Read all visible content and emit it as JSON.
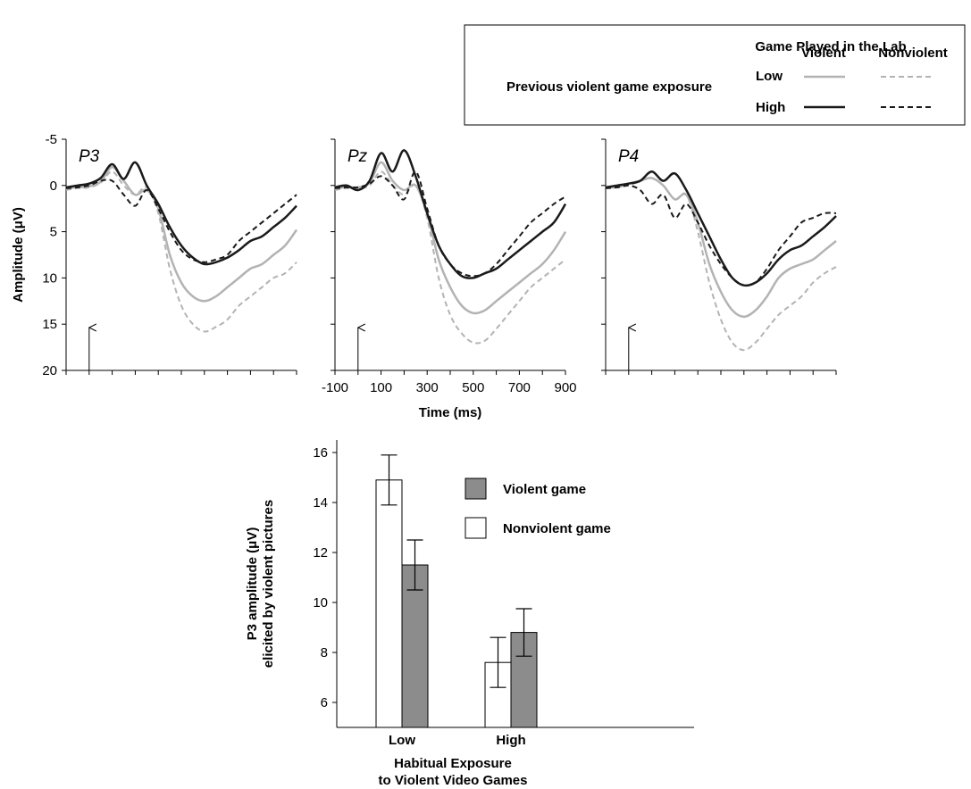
{
  "legend": {
    "title": "Game Played in the Lab",
    "row_label": "Previous violent game exposure",
    "col_violent": "Violent",
    "col_nonviolent": "Nonviolent",
    "level_low": "Low",
    "level_high": "High"
  },
  "colors": {
    "low_exposure": "#b3b3b3",
    "high_exposure": "#1a1a1a",
    "violent_bar": "#8c8c8c",
    "nonviolent_bar": "#ffffff"
  },
  "chart_data": [
    {
      "type": "line",
      "title": "P3",
      "ylabel": "Amplitude (μV)",
      "xlim": [
        -100,
        900
      ],
      "ylim": [
        -5,
        20
      ],
      "y_inverted": true,
      "yticks": [
        "-5",
        "0",
        "5",
        "10",
        "15",
        "20"
      ],
      "stimulus_onset_ms": 0,
      "x": [
        -100,
        -50,
        0,
        50,
        100,
        150,
        200,
        250,
        300,
        350,
        400,
        450,
        500,
        550,
        600,
        650,
        700,
        750,
        800,
        850,
        900
      ],
      "series": [
        {
          "name": "Low - Violent",
          "exposure": "Low",
          "game": "Violent",
          "values": [
            0.3,
            0.2,
            0.1,
            -0.4,
            -2.0,
            -0.5,
            1.0,
            0.5,
            2.5,
            7.5,
            10.5,
            12.0,
            12.5,
            12.0,
            11.0,
            10.0,
            9.0,
            8.5,
            7.5,
            6.5,
            4.8
          ]
        },
        {
          "name": "Low - Nonviolent",
          "exposure": "Low",
          "game": "Nonviolent",
          "values": [
            0.5,
            0.3,
            0.2,
            -0.3,
            -1.5,
            0.0,
            1.0,
            0.2,
            3.0,
            9.0,
            13.0,
            15.0,
            15.8,
            15.3,
            14.5,
            13.0,
            12.0,
            11.0,
            10.0,
            9.5,
            8.3
          ]
        },
        {
          "name": "High - Violent",
          "exposure": "High",
          "game": "Violent",
          "values": [
            0.2,
            0.0,
            -0.2,
            -0.8,
            -2.3,
            -0.7,
            -2.5,
            0.0,
            2.0,
            4.5,
            6.5,
            7.8,
            8.5,
            8.3,
            7.8,
            7.0,
            6.0,
            5.5,
            4.5,
            3.5,
            2.2
          ]
        },
        {
          "name": "High - Nonviolent",
          "exposure": "High",
          "game": "Nonviolent",
          "values": [
            0.3,
            0.2,
            0.0,
            -0.5,
            -0.5,
            1.0,
            2.2,
            0.5,
            2.5,
            5.0,
            7.0,
            8.0,
            8.3,
            8.0,
            7.5,
            6.0,
            5.0,
            4.0,
            3.0,
            2.0,
            1.0
          ]
        }
      ]
    },
    {
      "type": "line",
      "title": "Pz",
      "xlabel": "Time (ms)",
      "xlim": [
        -100,
        900
      ],
      "ylim": [
        -5,
        20
      ],
      "y_inverted": true,
      "xticks": [
        "-100",
        "100",
        "300",
        "500",
        "700",
        "900"
      ],
      "stimulus_onset_ms": 0,
      "x": [
        -100,
        -50,
        0,
        50,
        100,
        150,
        200,
        250,
        300,
        350,
        400,
        450,
        500,
        550,
        600,
        650,
        700,
        750,
        800,
        850,
        900
      ],
      "series": [
        {
          "name": "Low - Violent",
          "exposure": "Low",
          "game": "Violent",
          "values": [
            0.3,
            0.2,
            0.2,
            -0.3,
            -2.5,
            -0.5,
            0.5,
            0.0,
            3.0,
            8.0,
            11.0,
            13.0,
            13.8,
            13.5,
            12.5,
            11.5,
            10.5,
            9.5,
            8.5,
            7.0,
            5.0
          ]
        },
        {
          "name": "Low - Nonviolent",
          "exposure": "Low",
          "game": "Nonviolent",
          "values": [
            0.5,
            0.3,
            0.3,
            0.0,
            -1.5,
            0.0,
            1.0,
            0.0,
            3.5,
            10.0,
            14.0,
            16.0,
            17.0,
            16.8,
            15.5,
            14.0,
            12.5,
            11.0,
            10.0,
            9.0,
            8.0
          ]
        },
        {
          "name": "High - Violent",
          "exposure": "High",
          "game": "Violent",
          "values": [
            0.2,
            0.0,
            0.5,
            -0.5,
            -3.5,
            -1.5,
            -3.8,
            -1.0,
            3.0,
            6.5,
            8.5,
            9.8,
            10.0,
            9.5,
            9.0,
            8.0,
            7.0,
            6.0,
            5.0,
            4.0,
            2.0
          ]
        },
        {
          "name": "High - Nonviolent",
          "exposure": "High",
          "game": "Nonviolent",
          "values": [
            0.3,
            0.2,
            0.2,
            -0.2,
            -1.0,
            0.0,
            1.5,
            -1.5,
            2.5,
            6.5,
            8.5,
            9.5,
            9.8,
            9.5,
            8.5,
            7.0,
            5.5,
            4.0,
            3.0,
            2.0,
            1.2
          ]
        }
      ]
    },
    {
      "type": "line",
      "title": "P4",
      "xlim": [
        -100,
        900
      ],
      "ylim": [
        -5,
        20
      ],
      "y_inverted": true,
      "stimulus_onset_ms": 0,
      "x": [
        -100,
        -50,
        0,
        50,
        100,
        150,
        200,
        250,
        300,
        350,
        400,
        450,
        500,
        550,
        600,
        650,
        700,
        750,
        800,
        850,
        900
      ],
      "series": [
        {
          "name": "Low - Violent",
          "exposure": "Low",
          "game": "Violent",
          "values": [
            0.2,
            0.2,
            -0.2,
            -0.5,
            -0.8,
            0.0,
            1.5,
            1.0,
            4.0,
            8.5,
            11.5,
            13.5,
            14.2,
            13.5,
            12.0,
            10.0,
            9.0,
            8.5,
            8.0,
            7.0,
            6.0
          ]
        },
        {
          "name": "Low - Nonviolent",
          "exposure": "Low",
          "game": "Nonviolent",
          "values": [
            0.3,
            0.2,
            0.0,
            -0.5,
            -0.8,
            0.0,
            1.5,
            1.0,
            5.0,
            10.5,
            14.5,
            17.0,
            17.8,
            17.0,
            15.5,
            14.0,
            13.0,
            12.0,
            10.5,
            9.5,
            8.8
          ]
        },
        {
          "name": "High - Violent",
          "exposure": "High",
          "game": "Violent",
          "values": [
            0.2,
            0.0,
            -0.2,
            -0.5,
            -1.5,
            -0.5,
            -1.3,
            0.5,
            3.0,
            5.5,
            8.0,
            10.0,
            10.8,
            10.5,
            9.5,
            8.0,
            7.0,
            6.5,
            5.5,
            4.5,
            3.3
          ]
        },
        {
          "name": "High - Nonviolent",
          "exposure": "High",
          "game": "Nonviolent",
          "values": [
            0.3,
            0.2,
            0.0,
            0.5,
            2.0,
            1.0,
            3.5,
            2.0,
            4.0,
            6.5,
            8.5,
            10.0,
            10.8,
            10.5,
            9.0,
            7.0,
            5.5,
            4.0,
            3.5,
            3.0,
            3.0
          ]
        }
      ]
    },
    {
      "type": "bar",
      "xlabel": "Habitual Exposure to Violent Video Games",
      "xlabel_lines": [
        "Habitual Exposure",
        "to Violent Video Games"
      ],
      "ylabel": "P3 amplitude (μV) elicited by violent pictures",
      "ylabel_lines": [
        "P3 amplitude (μV)",
        "elicited by violent pictures"
      ],
      "ylim": [
        5,
        16.5
      ],
      "yticks": [
        6,
        8,
        10,
        12,
        14,
        16
      ],
      "categories": [
        "Low",
        "High"
      ],
      "legend": [
        "Violent game",
        "Nonviolent game"
      ],
      "series": [
        {
          "name": "Nonviolent game",
          "values": [
            14.9,
            7.6
          ],
          "errors": [
            1.0,
            1.0
          ]
        },
        {
          "name": "Violent game",
          "values": [
            11.5,
            8.8
          ],
          "errors": [
            1.0,
            0.95
          ]
        }
      ]
    }
  ]
}
